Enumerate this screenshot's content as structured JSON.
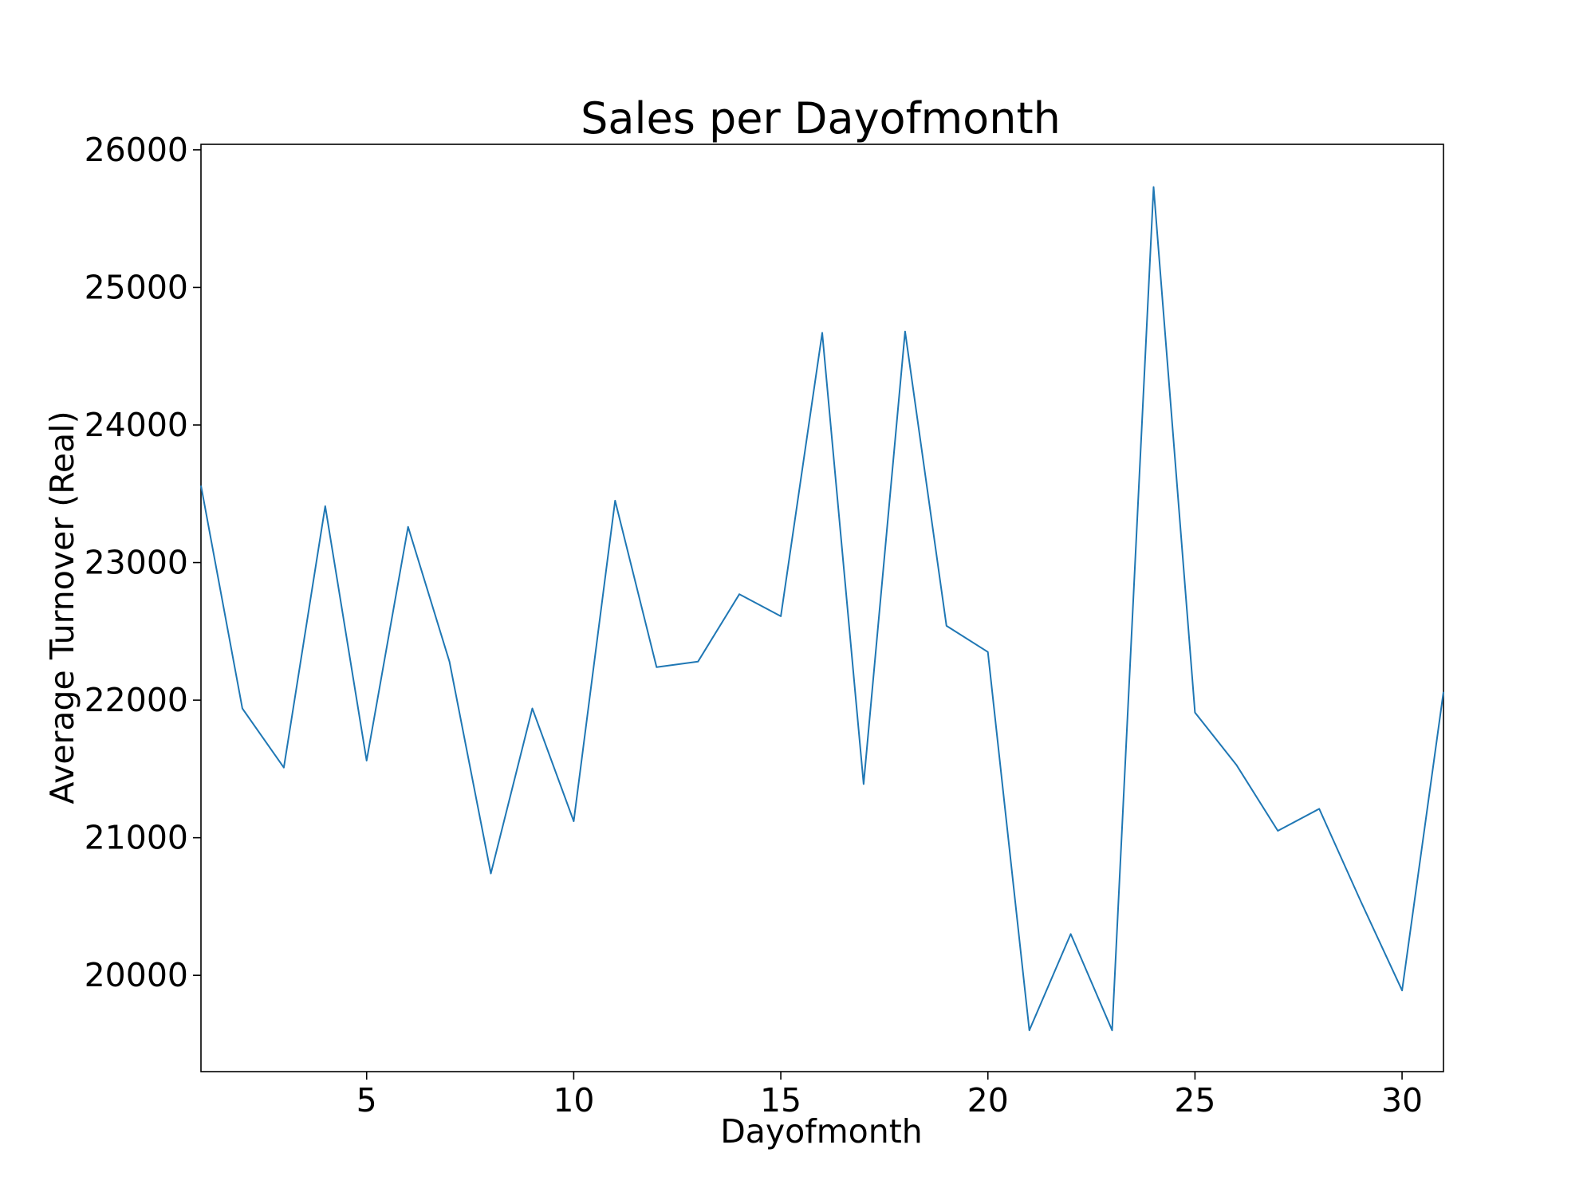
{
  "chart_data": {
    "type": "line",
    "title": "Sales per Dayofmonth",
    "xlabel": "Dayofmonth",
    "ylabel": "Average Turnover (Real)",
    "xlim": [
      1,
      31
    ],
    "ylim": [
      19300,
      26040
    ],
    "xticks": [
      5,
      10,
      15,
      20,
      25,
      30
    ],
    "yticks": [
      20000,
      21000,
      22000,
      23000,
      24000,
      25000,
      26000
    ],
    "grid": false,
    "legend": "none",
    "series": [
      {
        "color": "#1f77b4",
        "x": [
          1,
          2,
          3,
          4,
          5,
          6,
          7,
          8,
          9,
          10,
          11,
          12,
          13,
          14,
          15,
          16,
          17,
          18,
          19,
          20,
          21,
          22,
          23,
          24,
          25,
          26,
          27,
          28,
          29,
          30,
          31
        ],
        "values": [
          23560,
          21940,
          21510,
          23410,
          21560,
          23260,
          22280,
          20740,
          21940,
          21120,
          23450,
          22240,
          22280,
          22770,
          22610,
          24670,
          21390,
          24680,
          22540,
          22350,
          19600,
          20300,
          19600,
          25730,
          21910,
          21530,
          21050,
          21210,
          20540,
          19890,
          22060
        ]
      }
    ]
  }
}
